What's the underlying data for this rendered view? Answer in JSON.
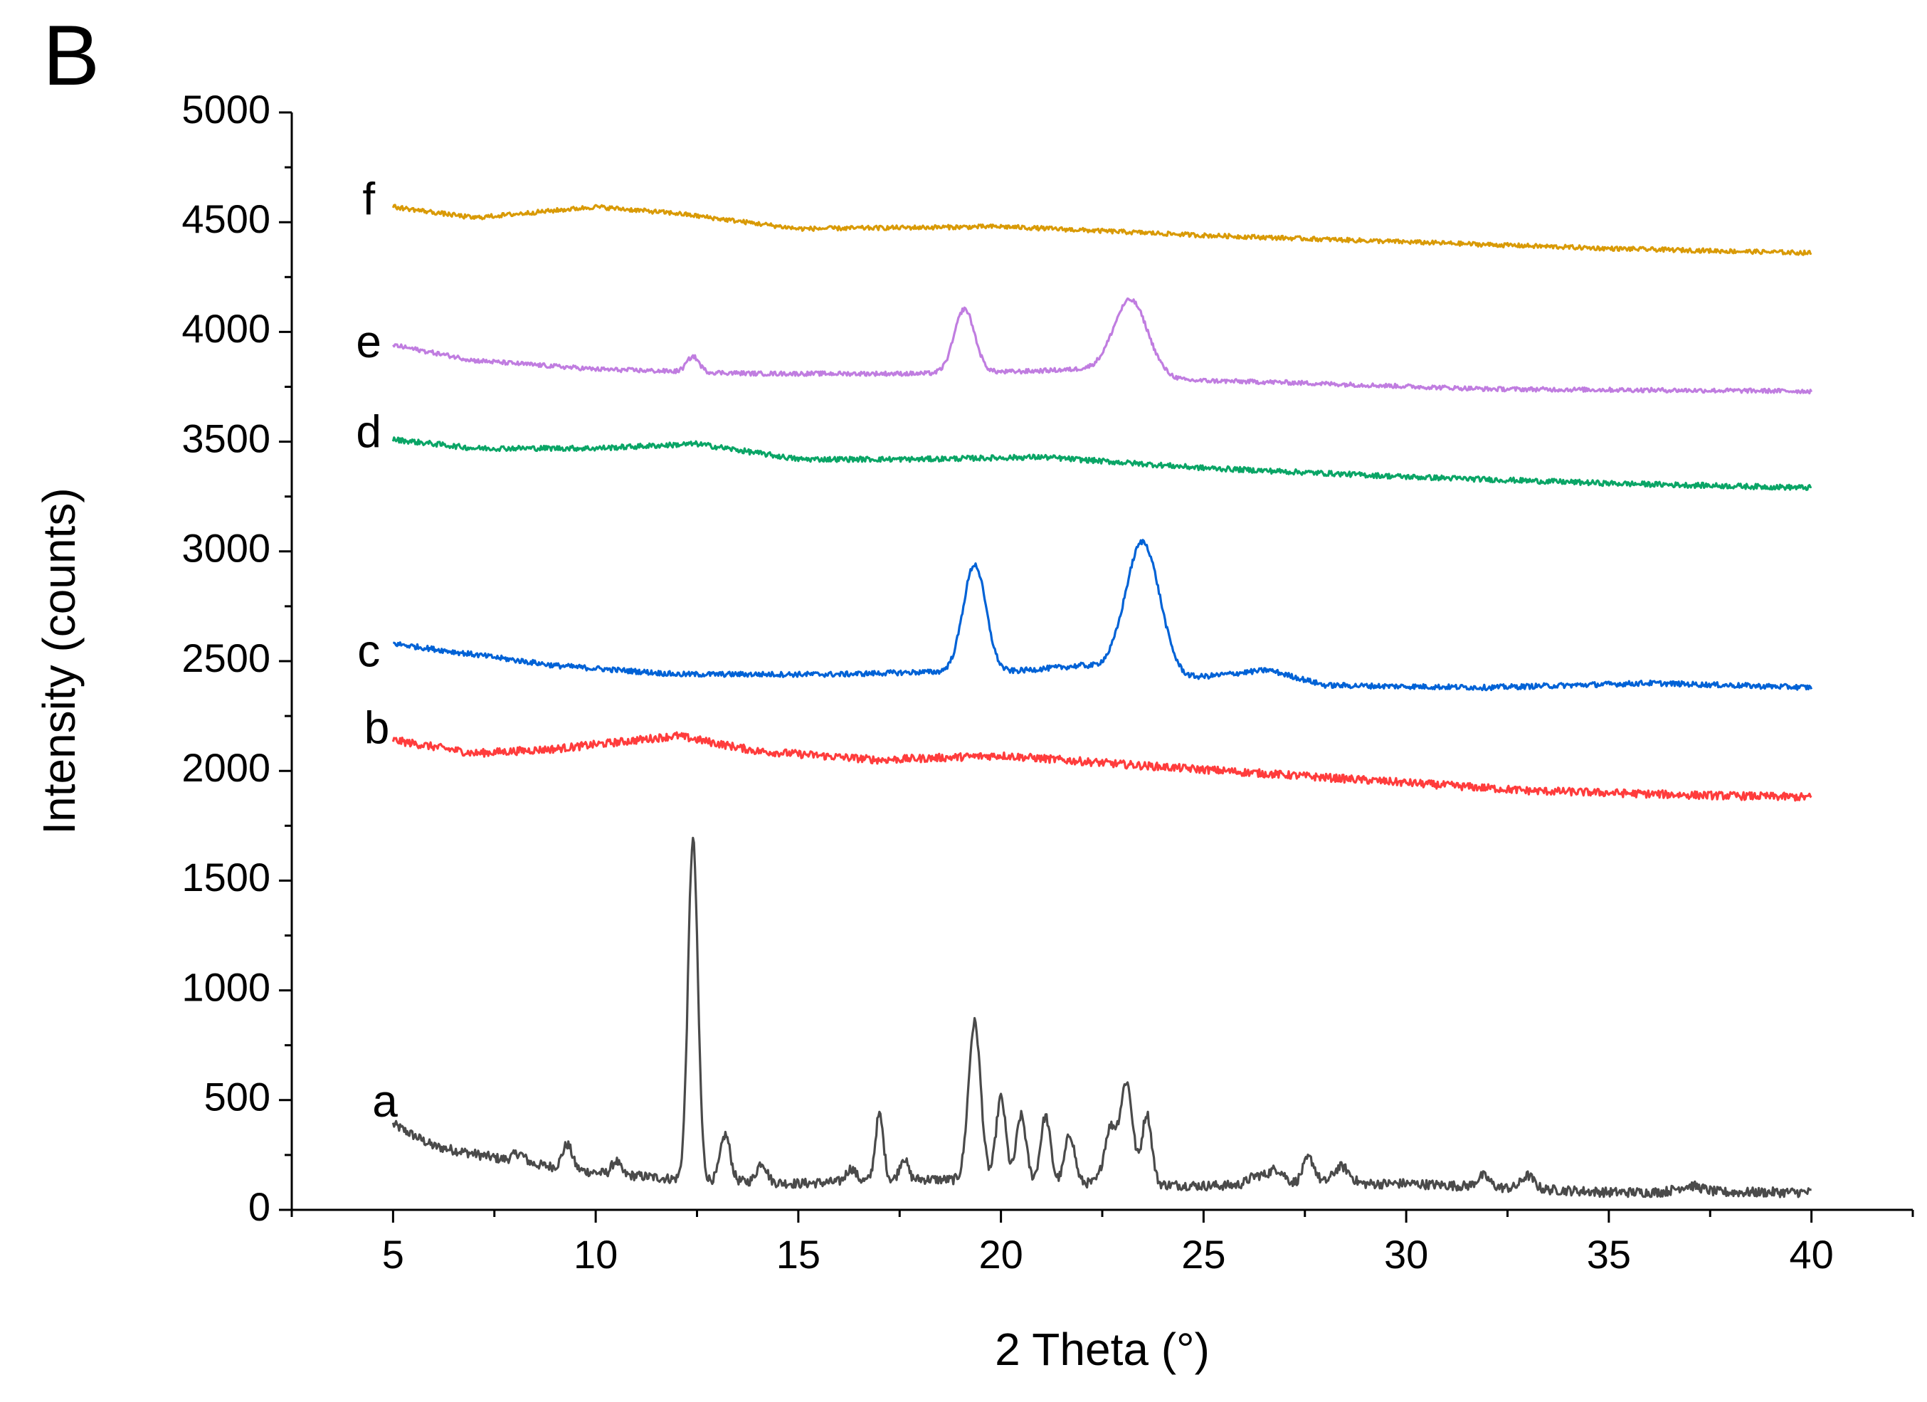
{
  "panel_label": "B",
  "chart_data": {
    "type": "line",
    "title": "",
    "xlabel": "2 Theta (°)",
    "ylabel": "Intensity (counts)",
    "xlim": [
      2.5,
      42.5
    ],
    "ylim": [
      0,
      5000
    ],
    "xticks": [
      5,
      10,
      15,
      20,
      25,
      30,
      35,
      40
    ],
    "yticks": [
      0,
      500,
      1000,
      1500,
      2000,
      2500,
      3000,
      3500,
      4000,
      4500,
      5000
    ],
    "grid": false,
    "series": [
      {
        "name": "a",
        "color": "#4a4a4a",
        "label_pos": [
          4.8,
          480
        ],
        "baseline": [
          [
            5,
            390
          ],
          [
            6,
            290
          ],
          [
            8,
            220
          ],
          [
            10,
            170
          ],
          [
            12,
            140
          ],
          [
            15,
            120
          ],
          [
            18,
            140
          ],
          [
            25,
            110
          ],
          [
            30,
            120
          ],
          [
            35,
            80
          ],
          [
            40,
            80
          ]
        ],
        "peaks": [
          [
            8.1,
            40,
            0.15
          ],
          [
            9.3,
            110,
            0.12
          ],
          [
            10.5,
            60,
            0.1
          ],
          [
            12.4,
            1550,
            0.12
          ],
          [
            13.2,
            210,
            0.12
          ],
          [
            14.1,
            90,
            0.12
          ],
          [
            16.3,
            60,
            0.12
          ],
          [
            17.0,
            300,
            0.1
          ],
          [
            17.6,
            100,
            0.1
          ],
          [
            19.35,
            720,
            0.15
          ],
          [
            20.0,
            380,
            0.12
          ],
          [
            20.5,
            300,
            0.12
          ],
          [
            21.1,
            300,
            0.12
          ],
          [
            21.7,
            220,
            0.12
          ],
          [
            22.7,
            250,
            0.15
          ],
          [
            23.1,
            460,
            0.15
          ],
          [
            23.6,
            320,
            0.12
          ],
          [
            26.3,
            40,
            0.2
          ],
          [
            26.8,
            70,
            0.2
          ],
          [
            27.6,
            120,
            0.15
          ],
          [
            28.4,
            80,
            0.2
          ],
          [
            31.9,
            50,
            0.15
          ],
          [
            33.0,
            60,
            0.15
          ],
          [
            37.0,
            30,
            0.3
          ]
        ],
        "noise": 22
      },
      {
        "name": "b",
        "color": "#ff3c3c",
        "label_pos": [
          4.6,
          2180
        ],
        "baseline": [
          [
            5,
            2140
          ],
          [
            7,
            2080
          ],
          [
            9,
            2100
          ],
          [
            12,
            2160
          ],
          [
            14,
            2090
          ],
          [
            17,
            2050
          ],
          [
            20,
            2070
          ],
          [
            23,
            2030
          ],
          [
            28,
            1970
          ],
          [
            33,
            1910
          ],
          [
            37,
            1890
          ],
          [
            40,
            1880
          ]
        ],
        "peaks": [],
        "noise": 18
      },
      {
        "name": "c",
        "color": "#0062d6",
        "label_pos": [
          4.4,
          2530
        ],
        "baseline": [
          [
            5,
            2580
          ],
          [
            7,
            2530
          ],
          [
            9,
            2480
          ],
          [
            12,
            2440
          ],
          [
            16,
            2440
          ],
          [
            18,
            2450
          ],
          [
            20,
            2450
          ],
          [
            22,
            2480
          ],
          [
            24.5,
            2420
          ],
          [
            26.6,
            2460
          ],
          [
            28,
            2390
          ],
          [
            32,
            2380
          ],
          [
            36,
            2400
          ],
          [
            40,
            2380
          ]
        ],
        "peaks": [
          [
            19.35,
            490,
            0.28
          ],
          [
            23.5,
            600,
            0.42
          ]
        ],
        "noise": 12
      },
      {
        "name": "d",
        "color": "#0aa566",
        "label_pos": [
          4.4,
          3530
        ],
        "baseline": [
          [
            5,
            3510
          ],
          [
            7,
            3470
          ],
          [
            10,
            3470
          ],
          [
            12.5,
            3490
          ],
          [
            15,
            3420
          ],
          [
            18,
            3420
          ],
          [
            21,
            3430
          ],
          [
            25,
            3380
          ],
          [
            30,
            3340
          ],
          [
            35,
            3310
          ],
          [
            40,
            3290
          ]
        ],
        "peaks": [],
        "noise": 12
      },
      {
        "name": "e",
        "color": "#c07de0",
        "label_pos": [
          4.4,
          3940
        ],
        "baseline": [
          [
            5,
            3940
          ],
          [
            7,
            3870
          ],
          [
            10,
            3830
          ],
          [
            14,
            3810
          ],
          [
            18,
            3810
          ],
          [
            20.5,
            3820
          ],
          [
            22,
            3830
          ],
          [
            24.5,
            3780
          ],
          [
            27,
            3770
          ],
          [
            32,
            3740
          ],
          [
            40,
            3730
          ]
        ],
        "peaks": [
          [
            12.4,
            70,
            0.15
          ],
          [
            19.1,
            290,
            0.25
          ],
          [
            23.2,
            340,
            0.42
          ]
        ],
        "noise": 10
      },
      {
        "name": "f",
        "color": "#d99a06",
        "label_pos": [
          4.4,
          4590
        ],
        "baseline": [
          [
            5,
            4570
          ],
          [
            7,
            4520
          ],
          [
            10,
            4570
          ],
          [
            12,
            4540
          ],
          [
            15,
            4470
          ],
          [
            20,
            4480
          ],
          [
            25,
            4440
          ],
          [
            30,
            4410
          ],
          [
            35,
            4380
          ],
          [
            40,
            4360
          ]
        ],
        "peaks": [],
        "noise": 10
      }
    ]
  }
}
